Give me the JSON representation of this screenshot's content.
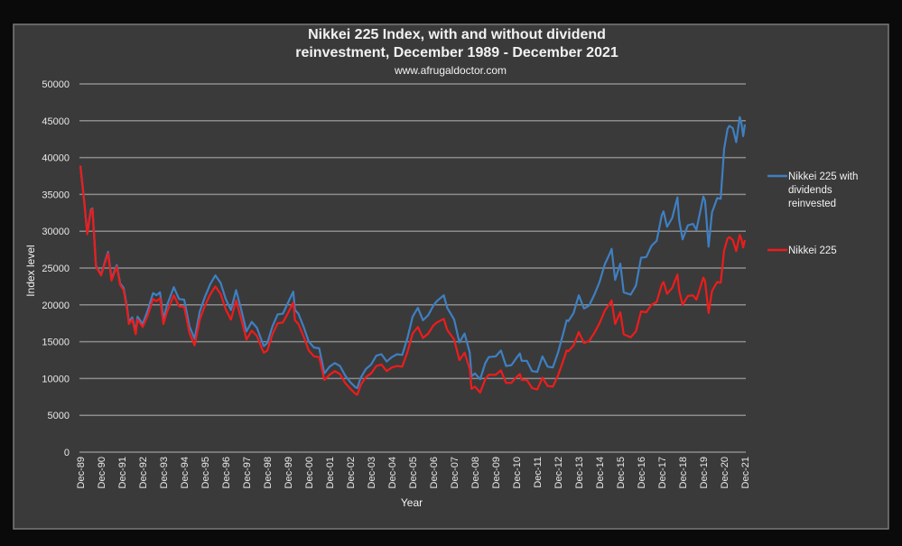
{
  "chart_data": {
    "type": "line",
    "title": "Nikkei 225 Index, with and without dividend reinvestment, December 1989 - December 2021",
    "title_lines": [
      "Nikkei 225 Index, with and without dividend",
      "reinvestment, December 1989 - December 2021"
    ],
    "subtitle": "www.afrugaldoctor.com",
    "xlabel": "Year",
    "ylabel": "Index level",
    "ylim": [
      0,
      50000
    ],
    "xlim": [
      "1989-12",
      "2021-12"
    ],
    "yticks": [
      "0",
      "5000",
      "10000",
      "15000",
      "20000",
      "25000",
      "30000",
      "35000",
      "40000",
      "45000",
      "50000"
    ],
    "xticks": [
      "Dec-89",
      "Dec-90",
      "Dec-91",
      "Dec-92",
      "Dec-93",
      "Dec-94",
      "Dec-95",
      "Dec-96",
      "Dec-97",
      "Dec-98",
      "Dec-99",
      "Dec-00",
      "Dec-01",
      "Dec-02",
      "Dec-03",
      "Dec-04",
      "Dec-05",
      "Dec-06",
      "Dec-07",
      "Dec-08",
      "Dec-09",
      "Dec-10",
      "Dec-11",
      "Dec-12",
      "Dec-13",
      "Dec-14",
      "Dec-15",
      "Dec-16",
      "Dec-17",
      "Dec-18",
      "Dec-19",
      "Dec-20",
      "Dec-21"
    ],
    "grid": true,
    "legend_position": "right",
    "x": [
      "1989-12",
      "1990-02",
      "1990-04",
      "1990-06",
      "1990-07",
      "1990-09",
      "1990-12",
      "1991-03",
      "1991-04",
      "1991-06",
      "1991-09",
      "1991-11",
      "1992-01",
      "1992-03",
      "1992-04",
      "1992-06",
      "1992-08",
      "1992-09",
      "1992-12",
      "1993-03",
      "1993-06",
      "1993-08",
      "1993-10",
      "1993-12",
      "1994-02",
      "1994-06",
      "1994-09",
      "1994-12",
      "1995-03",
      "1995-06",
      "1995-09",
      "1995-12",
      "1996-03",
      "1996-06",
      "1996-09",
      "1996-12",
      "1997-03",
      "1997-06",
      "1997-09",
      "1997-12",
      "1998-03",
      "1998-06",
      "1998-09",
      "1998-10",
      "1998-12",
      "1999-03",
      "1999-06",
      "1999-09",
      "1999-12",
      "2000-03",
      "2000-04",
      "2000-06",
      "2000-09",
      "2000-12",
      "2001-03",
      "2001-06",
      "2001-09",
      "2001-12",
      "2002-03",
      "2002-06",
      "2002-09",
      "2002-12",
      "2003-03",
      "2003-04",
      "2003-06",
      "2003-09",
      "2003-12",
      "2004-03",
      "2004-06",
      "2004-09",
      "2004-12",
      "2005-03",
      "2005-06",
      "2005-09",
      "2005-12",
      "2006-03",
      "2006-06",
      "2006-09",
      "2006-12",
      "2007-02",
      "2007-06",
      "2007-08",
      "2007-12",
      "2008-03",
      "2008-06",
      "2008-09",
      "2008-10",
      "2008-12",
      "2009-03",
      "2009-06",
      "2009-08",
      "2009-12",
      "2010-03",
      "2010-06",
      "2010-09",
      "2010-12",
      "2011-02",
      "2011-03",
      "2011-06",
      "2011-09",
      "2011-12",
      "2012-03",
      "2012-06",
      "2012-09",
      "2012-12",
      "2013-03",
      "2013-05",
      "2013-06",
      "2013-09",
      "2013-12",
      "2014-03",
      "2014-06",
      "2014-09",
      "2014-12",
      "2015-03",
      "2015-06",
      "2015-07",
      "2015-09",
      "2015-12",
      "2016-02",
      "2016-06",
      "2016-09",
      "2016-12",
      "2017-03",
      "2017-06",
      "2017-09",
      "2017-12",
      "2018-01",
      "2018-03",
      "2018-06",
      "2018-09",
      "2018-10",
      "2018-12",
      "2019-03",
      "2019-06",
      "2019-08",
      "2019-12",
      "2020-01",
      "2020-03",
      "2020-05",
      "2020-06",
      "2020-08",
      "2020-10",
      "2020-12",
      "2021-02",
      "2021-03",
      "2021-05",
      "2021-07",
      "2021-09",
      "2021-10",
      "2021-11",
      "2021-12"
    ],
    "series": [
      {
        "name": "Nikkei 225 with dividends reinvested",
        "color": "#3f7fc1",
        "values": [
          38900,
          34600,
          29700,
          32900,
          33100,
          25300,
          24100,
          26500,
          27200,
          23500,
          25400,
          22900,
          22300,
          19600,
          17700,
          18300,
          16300,
          18400,
          17400,
          19300,
          21600,
          21300,
          21700,
          18100,
          19900,
          22400,
          20800,
          20700,
          17100,
          15400,
          19100,
          21100,
          22800,
          24000,
          23000,
          20800,
          19300,
          22000,
          19300,
          16400,
          17700,
          16900,
          15000,
          14400,
          14800,
          17100,
          18700,
          18800,
          20300,
          21800,
          19300,
          18800,
          17000,
          15000,
          14200,
          14100,
          10700,
          11600,
          12100,
          11700,
          10400,
          9500,
          8800,
          8700,
          10100,
          11300,
          11900,
          13100,
          13300,
          12300,
          12900,
          13300,
          13200,
          15500,
          18400,
          19600,
          17900,
          18600,
          19900,
          20500,
          21300,
          19600,
          18000,
          14900,
          16100,
          13500,
          10300,
          10700,
          9900,
          12100,
          12900,
          13000,
          13800,
          11700,
          11800,
          12800,
          13400,
          12400,
          12400,
          11000,
          10900,
          13000,
          11600,
          11500,
          13500,
          16100,
          17900,
          17800,
          18900,
          21300,
          19500,
          19900,
          21400,
          23100,
          25500,
          27000,
          27600,
          23400,
          25600,
          21700,
          21400,
          22600,
          26400,
          26500,
          28000,
          28700,
          32200,
          32700,
          30600,
          31800,
          34600,
          31500,
          28900,
          30800,
          31000,
          30200,
          34700,
          34100,
          27900,
          32600,
          33200,
          34500,
          34400,
          41200,
          43900,
          44300,
          44000,
          42100,
          45500,
          44600,
          42900,
          44500
        ]
      },
      {
        "name": "Nikkei 225",
        "color": "#ee1c1c",
        "values": [
          38900,
          34600,
          29600,
          32800,
          33000,
          25200,
          24000,
          26300,
          27000,
          23300,
          25200,
          22700,
          22000,
          19300,
          17400,
          18000,
          16000,
          18000,
          17000,
          18600,
          20800,
          20500,
          20900,
          17400,
          19000,
          21300,
          19800,
          19700,
          16200,
          14500,
          18000,
          19900,
          21400,
          22500,
          21500,
          19400,
          18000,
          20600,
          18000,
          15300,
          16500,
          15800,
          14000,
          13500,
          13800,
          16000,
          17500,
          17600,
          18900,
          20300,
          17900,
          17400,
          15700,
          13800,
          13000,
          12900,
          9800,
          10500,
          11000,
          10600,
          9400,
          8600,
          7900,
          7800,
          9100,
          10200,
          10700,
          11700,
          11900,
          11000,
          11500,
          11700,
          11600,
          13600,
          16100,
          17000,
          15500,
          16100,
          17200,
          17600,
          18100,
          16600,
          15300,
          12500,
          13500,
          11300,
          8600,
          8900,
          8100,
          9900,
          10500,
          10500,
          11100,
          9400,
          9400,
          10200,
          10600,
          9800,
          9800,
          8700,
          8500,
          10100,
          9000,
          8900,
          10400,
          12400,
          13800,
          13700,
          14500,
          16300,
          14800,
          15100,
          16200,
          17500,
          19200,
          20200,
          20600,
          17400,
          19000,
          16000,
          15600,
          16400,
          19100,
          19000,
          20000,
          20400,
          22800,
          23100,
          21500,
          22300,
          24100,
          21900,
          20000,
          21200,
          21300,
          20700,
          23700,
          23200,
          18900,
          21900,
          22300,
          23100,
          23000,
          27400,
          29000,
          29200,
          28800,
          27300,
          29500,
          28900,
          27800,
          28800
        ]
      }
    ]
  },
  "legend": {
    "blue_lines": [
      "Nikkei 225 with",
      "dividends",
      "reinvested"
    ],
    "red_label": "Nikkei 225"
  },
  "colors": {
    "background": "#3a3a3a",
    "gridline": "#8c8c8c",
    "text": "#f2f2f2"
  }
}
